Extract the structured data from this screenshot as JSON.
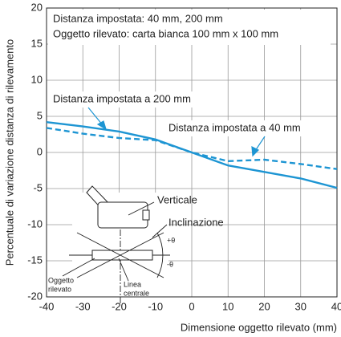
{
  "chart_data": {
    "type": "line",
    "x_label": "Dimensione oggetto rilevato (mm)",
    "y_label": "Percentuale di variazione distanza di rilevamento",
    "x": [
      -40,
      -30,
      -20,
      -10,
      0,
      10,
      20,
      30,
      40
    ],
    "series": [
      {
        "name": "Distanza impostata a 200 mm",
        "color": "#1d95d3",
        "dashed": false,
        "values": [
          4.2,
          3.6,
          2.9,
          1.8,
          0,
          -1.8,
          -2.7,
          -3.6,
          -4.9
        ]
      },
      {
        "name": "Distanza impostata a 40 mm",
        "color": "#1d95d3",
        "dashed": true,
        "values": [
          3.4,
          2.6,
          2.0,
          1.7,
          0,
          -1.2,
          -1.0,
          -1.6,
          -2.3
        ]
      }
    ],
    "xlim": [
      -40,
      40
    ],
    "ylim": [
      -20,
      20
    ],
    "xticks": [
      -40,
      -30,
      -20,
      -10,
      0,
      10,
      20,
      30,
      40
    ],
    "yticks": [
      -20,
      -15,
      -10,
      -5,
      0,
      5,
      10,
      15,
      20
    ],
    "grid": true,
    "info_box": [
      "Distanza impostata: 40 mm, 200 mm",
      "Oggetto rilevato: carta bianca 100 mm x 100 mm"
    ],
    "diagram_labels": {
      "vertical": "Verticale",
      "tilt": "Inclinazione",
      "plus_theta": "+θ",
      "minus_theta": "-θ",
      "object": [
        "Oggetto",
        "rilevato"
      ],
      "center_line": [
        "Linea",
        "centrale"
      ]
    }
  }
}
